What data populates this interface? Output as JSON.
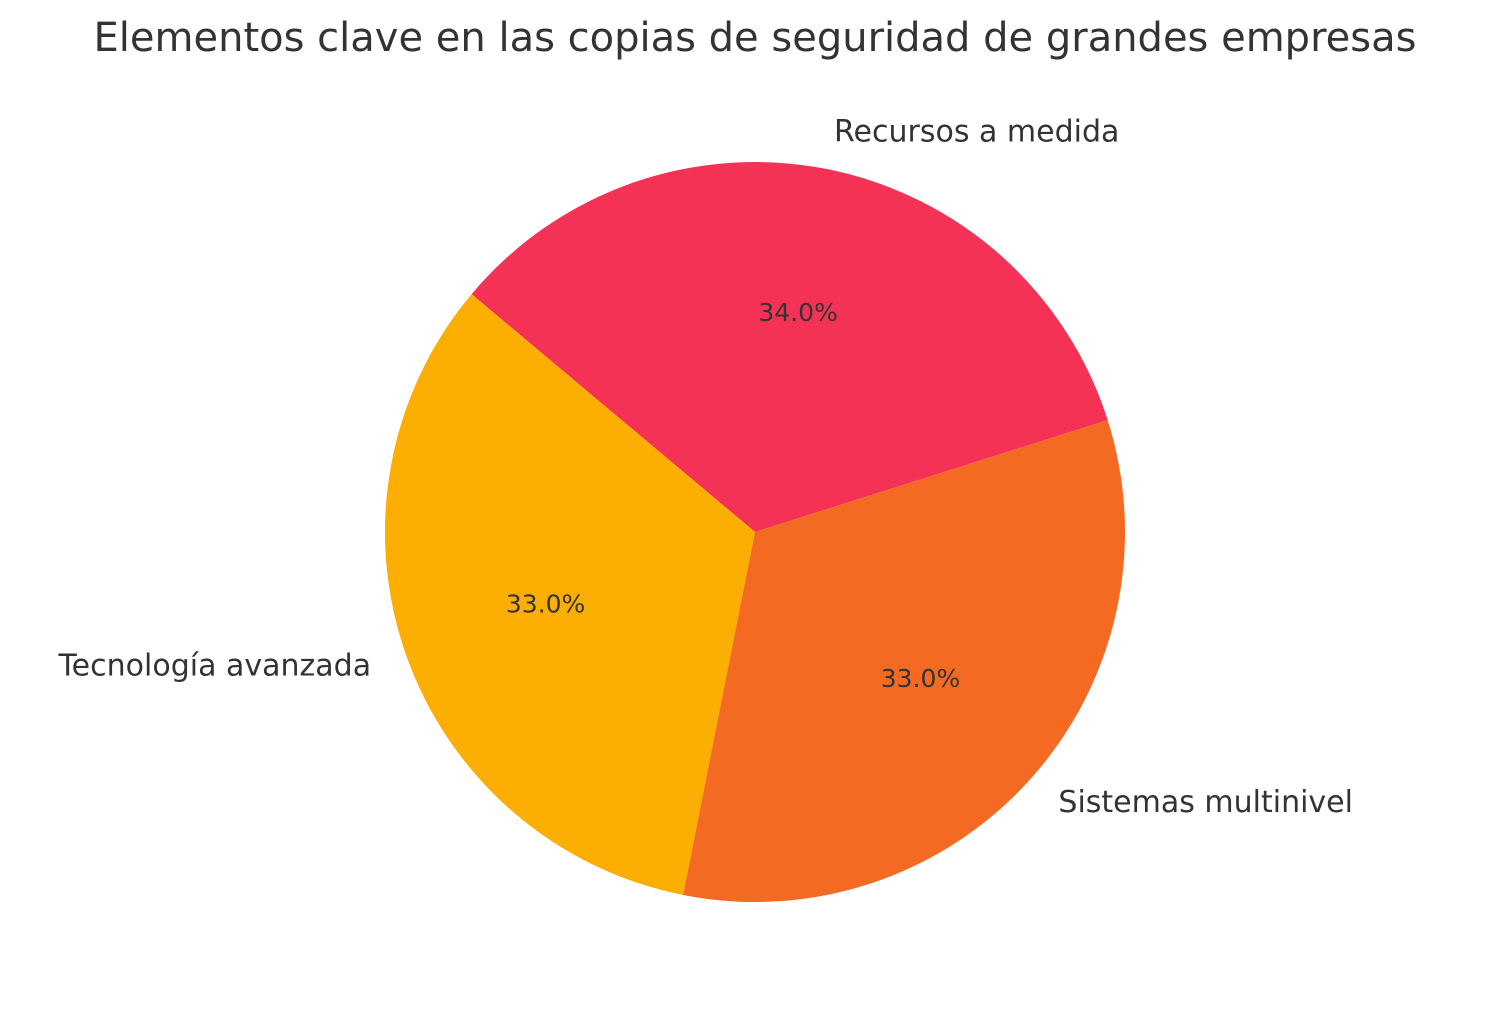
{
  "chart_data": {
    "type": "pie",
    "title": "Elementos clave en las copias de seguridad de grandes empresas",
    "categories": [
      "Recursos a medida",
      "Tecnología avanzada",
      "Sistemas multinivel"
    ],
    "values": [
      34,
      33,
      33
    ],
    "value_labels": [
      "34.0%",
      "33.0%",
      "33.0%"
    ],
    "colors": [
      "#f43256",
      "#fdae03",
      "#f46a22"
    ]
  }
}
